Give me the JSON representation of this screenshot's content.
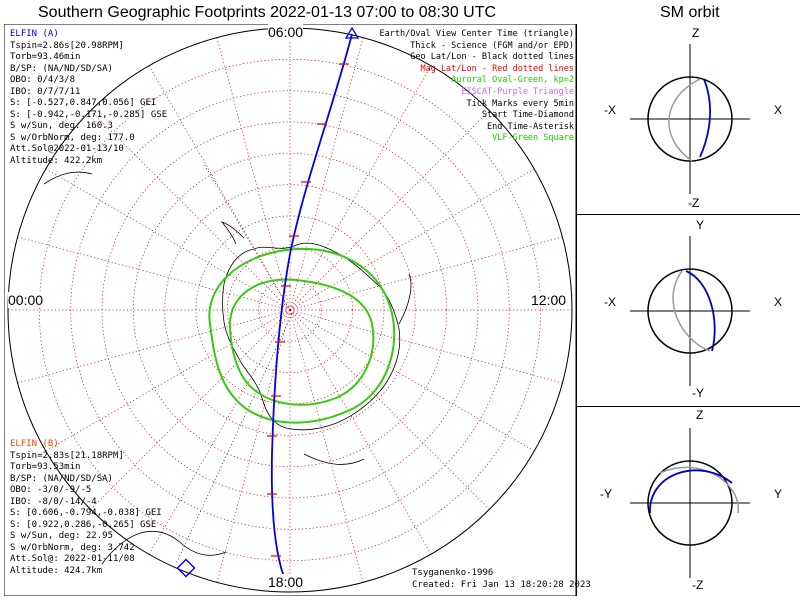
{
  "title": "Southern Geographic Footprints 2022-01-13 07:00 to 08:30 UTC",
  "sm_title": "SM orbit",
  "map": {
    "time_labels": {
      "top": "06:00",
      "left": "00:00",
      "right": "12:00",
      "bottom": "18:00"
    },
    "colors": {
      "grid": "#dd0000",
      "coast": "#000000",
      "oval": "#33cc11",
      "track": "#0000ee",
      "tick": "#dd0000"
    }
  },
  "elfin_a": {
    "header": "ELFIN (A)",
    "color": "#0000ee",
    "lines": [
      "Tspin=2.86s[20.98RPM]",
      "Torb=93.46min",
      "B/SP: (NA/ND/SD/SA)",
      "OBO: 0/4/3/8",
      "IBO: 0/7/7/11",
      "S: [-0.527,0.847,0.056] GEI",
      "S: [-0.942,-0.171,-0.285] GSE",
      "S w/Sun, deg: 160.3",
      "S w/OrbNorm, deg: 177.0",
      "Att.Sol@2022-01-13/10",
      "Altitude: 422.2km"
    ]
  },
  "elfin_b": {
    "header": "ELFIN (B)",
    "color": "#ff4400",
    "lines": [
      "Tspin=2.83s[21.18RPM]",
      "Torb=93.53min",
      "B/SP: (NA/ND/SD/SA)",
      "OBO: -3/0/-9/-5",
      "IBO: -8/0/-14/-4",
      "S: [0.606,-0.794,-0.038] GEI",
      "S: [0.922,0.286,-0.265] GSE",
      "S w/Sun, deg: 22.95",
      "S w/OrbNorm, deg: 3.742",
      "Att.Sol@: 2022-01-11/08",
      "Altitude: 424.7km"
    ]
  },
  "legend": [
    {
      "text": "Earth/Oval View Center Time (triangle)",
      "color": "#000000"
    },
    {
      "text": "Thick - Science (FGM and/or EPD)",
      "color": "#000000"
    },
    {
      "text": "Geo Lat/Lon - Black dotted lines",
      "color": "#000000"
    },
    {
      "text": "Mag Lat/Lon - Red dotted lines",
      "color": "#ee0000"
    },
    {
      "text": "Auroral Oval-Green, kp=2",
      "color": "#22cc00"
    },
    {
      "text": "EISCAT-Purple Triangle",
      "color": "#cc66ff"
    },
    {
      "text": "Tick Marks every 5min",
      "color": "#000000"
    },
    {
      "text": "Start Time-Diamond",
      "color": "#000000"
    },
    {
      "text": "End Time-Asterisk",
      "color": "#000000"
    },
    {
      "text": "VLF-Green Square",
      "color": "#22cc00"
    }
  ],
  "footer": {
    "model": "Tsyganenko-1996",
    "created": "Created: Fri Jan 13 18:20:28 2023"
  },
  "orbit_panels": [
    {
      "top": "Z",
      "bottom": "-Z",
      "left": "-X",
      "right": "X"
    },
    {
      "top": "Y",
      "bottom": "-Y",
      "left": "-X",
      "right": "X"
    },
    {
      "top": "Z",
      "bottom": "-Z",
      "left": "-Y",
      "right": "Y"
    }
  ]
}
